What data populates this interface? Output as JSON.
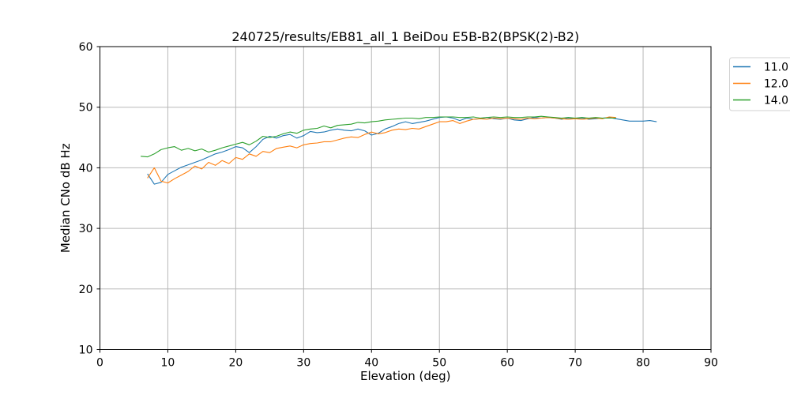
{
  "figure": {
    "background": "#ffffff"
  },
  "chart_data": {
    "type": "line",
    "title": "240725/results/EB81_all_1 BeiDou E5B-B2(BPSK(2)-B2)",
    "xlabel": "Elevation (deg)",
    "ylabel": "Median CNo dB Hz",
    "xlim": [
      0,
      90
    ],
    "ylim": [
      10,
      60
    ],
    "xticks": [
      0,
      10,
      20,
      30,
      40,
      50,
      60,
      70,
      80,
      90
    ],
    "yticks": [
      10,
      20,
      30,
      40,
      50,
      60
    ],
    "grid": true,
    "grid_color": "#b8b8b8",
    "spine_color": "#000000",
    "legend_position": "upper-right, outside axes, clipped at figure edge",
    "legend_border_color": "#d2d2d2",
    "series": [
      {
        "name": "11.0",
        "color": "#1f77b4",
        "points": [
          [
            7,
            39.0
          ],
          [
            8,
            37.3
          ],
          [
            9,
            37.6
          ],
          [
            10,
            38.9
          ],
          [
            11,
            39.5
          ],
          [
            12,
            40.1
          ],
          [
            13,
            40.5
          ],
          [
            14,
            40.9
          ],
          [
            15,
            41.3
          ],
          [
            16,
            41.8
          ],
          [
            17,
            42.3
          ],
          [
            18,
            42.6
          ],
          [
            19,
            43.0
          ],
          [
            20,
            43.5
          ],
          [
            21,
            43.3
          ],
          [
            22,
            42.5
          ],
          [
            23,
            43.5
          ],
          [
            24,
            44.7
          ],
          [
            25,
            45.2
          ],
          [
            26,
            44.9
          ],
          [
            27,
            45.3
          ],
          [
            28,
            45.5
          ],
          [
            29,
            44.9
          ],
          [
            30,
            45.3
          ],
          [
            31,
            46.0
          ],
          [
            32,
            45.8
          ],
          [
            33,
            45.9
          ],
          [
            34,
            46.2
          ],
          [
            35,
            46.4
          ],
          [
            36,
            46.2
          ],
          [
            37,
            46.1
          ],
          [
            38,
            46.4
          ],
          [
            39,
            46.1
          ],
          [
            40,
            45.4
          ],
          [
            41,
            45.7
          ],
          [
            42,
            46.4
          ],
          [
            43,
            46.8
          ],
          [
            44,
            47.3
          ],
          [
            45,
            47.6
          ],
          [
            46,
            47.3
          ],
          [
            47,
            47.5
          ],
          [
            48,
            47.7
          ],
          [
            49,
            48.0
          ],
          [
            50,
            48.3
          ],
          [
            51,
            48.4
          ],
          [
            52,
            48.2
          ],
          [
            53,
            47.8
          ],
          [
            54,
            48.2
          ],
          [
            55,
            48.0
          ],
          [
            56,
            48.1
          ],
          [
            57,
            48.3
          ],
          [
            58,
            48.1
          ],
          [
            59,
            48.0
          ],
          [
            60,
            48.2
          ],
          [
            61,
            47.9
          ],
          [
            62,
            47.8
          ],
          [
            63,
            48.1
          ],
          [
            64,
            48.3
          ],
          [
            65,
            48.2
          ],
          [
            66,
            48.3
          ],
          [
            67,
            48.2
          ],
          [
            68,
            48.0
          ],
          [
            69,
            48.2
          ],
          [
            70,
            48.1
          ],
          [
            71,
            48.2
          ],
          [
            72,
            48.0
          ],
          [
            73,
            48.1
          ],
          [
            74,
            48.2
          ],
          [
            75,
            48.3
          ],
          [
            76,
            48.1
          ],
          [
            77,
            47.9
          ],
          [
            78,
            47.7
          ],
          [
            79,
            47.7
          ],
          [
            80,
            47.7
          ],
          [
            81,
            47.8
          ],
          [
            82,
            47.6
          ]
        ]
      },
      {
        "name": "12.0",
        "color": "#ff7f0e",
        "points": [
          [
            7,
            38.3
          ],
          [
            8,
            40.0
          ],
          [
            9,
            37.8
          ],
          [
            10,
            37.5
          ],
          [
            11,
            38.2
          ],
          [
            12,
            38.8
          ],
          [
            13,
            39.4
          ],
          [
            14,
            40.3
          ],
          [
            15,
            39.8
          ],
          [
            16,
            40.9
          ],
          [
            17,
            40.4
          ],
          [
            18,
            41.2
          ],
          [
            19,
            40.7
          ],
          [
            20,
            41.7
          ],
          [
            21,
            41.4
          ],
          [
            22,
            42.3
          ],
          [
            23,
            41.9
          ],
          [
            24,
            42.7
          ],
          [
            25,
            42.5
          ],
          [
            26,
            43.2
          ],
          [
            27,
            43.4
          ],
          [
            28,
            43.6
          ],
          [
            29,
            43.3
          ],
          [
            30,
            43.8
          ],
          [
            31,
            44.0
          ],
          [
            32,
            44.1
          ],
          [
            33,
            44.3
          ],
          [
            34,
            44.3
          ],
          [
            35,
            44.6
          ],
          [
            36,
            44.9
          ],
          [
            37,
            45.1
          ],
          [
            38,
            45.0
          ],
          [
            39,
            45.5
          ],
          [
            40,
            45.9
          ],
          [
            41,
            45.6
          ],
          [
            42,
            45.8
          ],
          [
            43,
            46.2
          ],
          [
            44,
            46.4
          ],
          [
            45,
            46.3
          ],
          [
            46,
            46.5
          ],
          [
            47,
            46.4
          ],
          [
            48,
            46.8
          ],
          [
            49,
            47.2
          ],
          [
            50,
            47.6
          ],
          [
            51,
            47.6
          ],
          [
            52,
            47.8
          ],
          [
            53,
            47.3
          ],
          [
            54,
            47.7
          ],
          [
            55,
            48.0
          ],
          [
            56,
            48.1
          ],
          [
            57,
            48.0
          ],
          [
            58,
            48.2
          ],
          [
            59,
            48.1
          ],
          [
            60,
            48.2
          ],
          [
            61,
            48.1
          ],
          [
            62,
            48.0
          ],
          [
            63,
            48.2
          ],
          [
            64,
            48.1
          ],
          [
            65,
            48.2
          ],
          [
            66,
            48.3
          ],
          [
            67,
            48.2
          ],
          [
            68,
            48.1
          ],
          [
            69,
            48.0
          ],
          [
            70,
            48.1
          ],
          [
            71,
            48.0
          ],
          [
            72,
            48.1
          ],
          [
            73,
            48.2
          ],
          [
            74,
            48.1
          ],
          [
            75,
            48.4
          ],
          [
            76,
            48.3
          ]
        ]
      },
      {
        "name": "14.0",
        "color": "#2ca02c",
        "points": [
          [
            6,
            41.9
          ],
          [
            7,
            41.8
          ],
          [
            8,
            42.3
          ],
          [
            9,
            43.0
          ],
          [
            10,
            43.3
          ],
          [
            11,
            43.5
          ],
          [
            12,
            42.9
          ],
          [
            13,
            43.2
          ],
          [
            14,
            42.8
          ],
          [
            15,
            43.1
          ],
          [
            16,
            42.6
          ],
          [
            17,
            42.9
          ],
          [
            18,
            43.3
          ],
          [
            19,
            43.6
          ],
          [
            20,
            43.9
          ],
          [
            21,
            44.2
          ],
          [
            22,
            43.8
          ],
          [
            23,
            44.4
          ],
          [
            24,
            45.2
          ],
          [
            25,
            45.0
          ],
          [
            26,
            45.2
          ],
          [
            27,
            45.6
          ],
          [
            28,
            45.9
          ],
          [
            29,
            45.7
          ],
          [
            30,
            46.2
          ],
          [
            31,
            46.4
          ],
          [
            32,
            46.5
          ],
          [
            33,
            46.9
          ],
          [
            34,
            46.6
          ],
          [
            35,
            47.0
          ],
          [
            36,
            47.1
          ],
          [
            37,
            47.2
          ],
          [
            38,
            47.5
          ],
          [
            39,
            47.4
          ],
          [
            40,
            47.6
          ],
          [
            41,
            47.7
          ],
          [
            42,
            47.9
          ],
          [
            43,
            48.0
          ],
          [
            44,
            48.1
          ],
          [
            45,
            48.2
          ],
          [
            46,
            48.2
          ],
          [
            47,
            48.1
          ],
          [
            48,
            48.3
          ],
          [
            49,
            48.3
          ],
          [
            50,
            48.4
          ],
          [
            51,
            48.4
          ],
          [
            52,
            48.4
          ],
          [
            53,
            48.3
          ],
          [
            54,
            48.3
          ],
          [
            55,
            48.4
          ],
          [
            56,
            48.2
          ],
          [
            57,
            48.3
          ],
          [
            58,
            48.4
          ],
          [
            59,
            48.3
          ],
          [
            60,
            48.4
          ],
          [
            61,
            48.3
          ],
          [
            62,
            48.3
          ],
          [
            63,
            48.4
          ],
          [
            64,
            48.4
          ],
          [
            65,
            48.5
          ],
          [
            66,
            48.4
          ],
          [
            67,
            48.3
          ],
          [
            68,
            48.2
          ],
          [
            69,
            48.3
          ],
          [
            70,
            48.2
          ],
          [
            71,
            48.3
          ],
          [
            72,
            48.2
          ],
          [
            73,
            48.3
          ],
          [
            74,
            48.2
          ],
          [
            75,
            48.2
          ],
          [
            76,
            48.2
          ]
        ]
      }
    ]
  }
}
